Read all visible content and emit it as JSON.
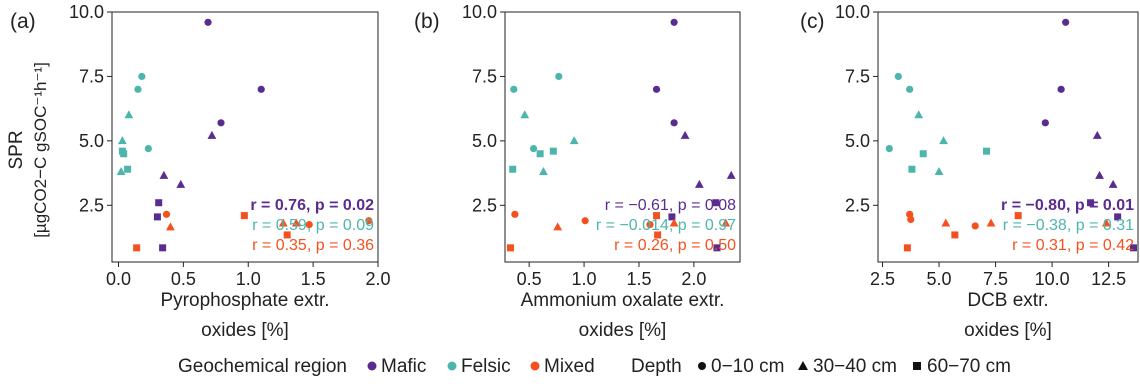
{
  "ylabel_line1": "SPR",
  "ylabel_line2": "[µgCO2−C gSOC⁻¹h⁻¹]",
  "colors": {
    "mafic": "#5b2c8f",
    "felsic": "#4db6ac",
    "mixed": "#f4511e"
  },
  "legend": {
    "region_title": "Geochemical region",
    "regions": [
      "Mafic",
      "Felsic",
      "Mixed"
    ],
    "depth_title": "Depth",
    "depths": [
      "0−10 cm",
      "30−40 cm",
      "60−70 cm"
    ]
  },
  "chart_data": [
    {
      "type": "scatter",
      "panel_label": "(a)",
      "xlabel_line1": "Pyrophosphate extr.",
      "xlabel_line2": "oxides [%]",
      "xlim": [
        -0.05,
        2.0
      ],
      "ylim": [
        0.3,
        10.0
      ],
      "xticks": [
        0.0,
        0.5,
        1.0,
        1.5,
        2.0
      ],
      "xtick_labels": [
        "0.0",
        "0.5",
        "1.0",
        "1.5",
        "2.0"
      ],
      "yticks": [
        2.5,
        5.0,
        7.5,
        10.0
      ],
      "ytick_labels": [
        "2.5",
        "5.0",
        "7.5",
        "10.0"
      ],
      "stats": [
        {
          "region": "mafic",
          "text": "r = 0.76, p = 0.02",
          "bold": true
        },
        {
          "region": "felsic",
          "text": "r = 0.59, p = 0.09",
          "bold": false
        },
        {
          "region": "mixed",
          "text": "r = 0.35, p = 0.36",
          "bold": false
        }
      ],
      "points": [
        {
          "region": "mafic",
          "depth": "0-10",
          "x": 0.69,
          "y": 9.6
        },
        {
          "region": "mafic",
          "depth": "0-10",
          "x": 1.1,
          "y": 7.0
        },
        {
          "region": "mafic",
          "depth": "0-10",
          "x": 0.79,
          "y": 5.7
        },
        {
          "region": "mafic",
          "depth": "30-40",
          "x": 0.72,
          "y": 5.2
        },
        {
          "region": "mafic",
          "depth": "30-40",
          "x": 0.35,
          "y": 3.65
        },
        {
          "region": "mafic",
          "depth": "30-40",
          "x": 0.48,
          "y": 3.3
        },
        {
          "region": "mafic",
          "depth": "60-70",
          "x": 0.31,
          "y": 2.6
        },
        {
          "region": "mafic",
          "depth": "60-70",
          "x": 0.3,
          "y": 2.05
        },
        {
          "region": "mafic",
          "depth": "60-70",
          "x": 0.34,
          "y": 0.85
        },
        {
          "region": "felsic",
          "depth": "0-10",
          "x": 0.18,
          "y": 7.5
        },
        {
          "region": "felsic",
          "depth": "0-10",
          "x": 0.15,
          "y": 7.0
        },
        {
          "region": "felsic",
          "depth": "0-10",
          "x": 0.23,
          "y": 4.7
        },
        {
          "region": "felsic",
          "depth": "30-40",
          "x": 0.08,
          "y": 6.0
        },
        {
          "region": "felsic",
          "depth": "30-40",
          "x": 0.03,
          "y": 5.0
        },
        {
          "region": "felsic",
          "depth": "30-40",
          "x": 0.02,
          "y": 3.8
        },
        {
          "region": "felsic",
          "depth": "60-70",
          "x": 0.03,
          "y": 4.6
        },
        {
          "region": "felsic",
          "depth": "60-70",
          "x": 0.04,
          "y": 4.5
        },
        {
          "region": "felsic",
          "depth": "60-70",
          "x": 0.07,
          "y": 3.9
        },
        {
          "region": "mixed",
          "depth": "0-10",
          "x": 0.37,
          "y": 2.15
        },
        {
          "region": "mixed",
          "depth": "0-10",
          "x": 1.93,
          "y": 1.9
        },
        {
          "region": "mixed",
          "depth": "30-40",
          "x": 0.4,
          "y": 1.65
        },
        {
          "region": "mixed",
          "depth": "30-40",
          "x": 1.27,
          "y": 1.8
        },
        {
          "region": "mixed",
          "depth": "30-40",
          "x": 1.37,
          "y": 1.8
        },
        {
          "region": "mixed",
          "depth": "60-70",
          "x": 0.97,
          "y": 2.1
        },
        {
          "region": "mixed",
          "depth": "60-70",
          "x": 0.14,
          "y": 0.85
        },
        {
          "region": "mixed",
          "depth": "60-70",
          "x": 1.3,
          "y": 1.35
        },
        {
          "region": "mixed",
          "depth": "0-10",
          "x": 1.47,
          "y": 1.75
        }
      ]
    },
    {
      "type": "scatter",
      "panel_label": "(b)",
      "xlabel_line1": "Ammonium oxalate extr.",
      "xlabel_line2": "oxides [%]",
      "xlim": [
        0.28,
        2.42
      ],
      "ylim": [
        0.3,
        10.0
      ],
      "xticks": [
        0.5,
        1.0,
        1.5,
        2.0
      ],
      "xtick_labels": [
        "0.5",
        "1.0",
        "1.5",
        "2.0"
      ],
      "yticks": [
        2.5,
        5.0,
        7.5,
        10.0
      ],
      "ytick_labels": [
        "2.5",
        "5.0",
        "7.5",
        "10.0"
      ],
      "stats": [
        {
          "region": "mafic",
          "text": "r = −0.61, p = 0.08",
          "bold": false
        },
        {
          "region": "felsic",
          "text": "r = −0.014, p = 0.97",
          "bold": false
        },
        {
          "region": "mixed",
          "text": "r =   0.26, p = 0.50",
          "bold": false
        }
      ],
      "points": [
        {
          "region": "mafic",
          "depth": "0-10",
          "x": 1.82,
          "y": 9.6
        },
        {
          "region": "mafic",
          "depth": "0-10",
          "x": 1.66,
          "y": 7.0
        },
        {
          "region": "mafic",
          "depth": "0-10",
          "x": 1.82,
          "y": 5.7
        },
        {
          "region": "mafic",
          "depth": "30-40",
          "x": 1.92,
          "y": 5.2
        },
        {
          "region": "mafic",
          "depth": "30-40",
          "x": 2.34,
          "y": 3.65
        },
        {
          "region": "mafic",
          "depth": "30-40",
          "x": 2.05,
          "y": 3.3
        },
        {
          "region": "mafic",
          "depth": "60-70",
          "x": 2.2,
          "y": 2.6
        },
        {
          "region": "mafic",
          "depth": "60-70",
          "x": 1.8,
          "y": 2.05
        },
        {
          "region": "mafic",
          "depth": "60-70",
          "x": 2.21,
          "y": 0.85
        },
        {
          "region": "felsic",
          "depth": "0-10",
          "x": 0.77,
          "y": 7.5
        },
        {
          "region": "felsic",
          "depth": "0-10",
          "x": 0.36,
          "y": 7.0
        },
        {
          "region": "felsic",
          "depth": "0-10",
          "x": 0.54,
          "y": 4.7
        },
        {
          "region": "felsic",
          "depth": "30-40",
          "x": 0.46,
          "y": 6.0
        },
        {
          "region": "felsic",
          "depth": "30-40",
          "x": 0.91,
          "y": 5.0
        },
        {
          "region": "felsic",
          "depth": "30-40",
          "x": 0.63,
          "y": 3.8
        },
        {
          "region": "felsic",
          "depth": "60-70",
          "x": 0.72,
          "y": 4.6
        },
        {
          "region": "felsic",
          "depth": "60-70",
          "x": 0.6,
          "y": 4.5
        },
        {
          "region": "felsic",
          "depth": "60-70",
          "x": 0.35,
          "y": 3.9
        },
        {
          "region": "mixed",
          "depth": "0-10",
          "x": 0.37,
          "y": 2.15
        },
        {
          "region": "mixed",
          "depth": "0-10",
          "x": 1.01,
          "y": 1.9
        },
        {
          "region": "mixed",
          "depth": "30-40",
          "x": 0.76,
          "y": 1.65
        },
        {
          "region": "mixed",
          "depth": "30-40",
          "x": 1.82,
          "y": 1.8
        },
        {
          "region": "mixed",
          "depth": "30-40",
          "x": 2.29,
          "y": 1.8
        },
        {
          "region": "mixed",
          "depth": "60-70",
          "x": 1.66,
          "y": 2.1
        },
        {
          "region": "mixed",
          "depth": "60-70",
          "x": 0.33,
          "y": 0.85
        },
        {
          "region": "mixed",
          "depth": "60-70",
          "x": 1.67,
          "y": 1.35
        },
        {
          "region": "mixed",
          "depth": "0-10",
          "x": 1.6,
          "y": 1.75
        }
      ]
    },
    {
      "type": "scatter",
      "panel_label": "(c)",
      "xlabel_line1": "DCB extr.",
      "xlabel_line2": "oxides [%]",
      "xlim": [
        2.3,
        13.8
      ],
      "ylim": [
        0.3,
        10.0
      ],
      "xticks": [
        2.5,
        5.0,
        7.5,
        10.0,
        12.5
      ],
      "xtick_labels": [
        "2.5",
        "5.0",
        "7.5",
        "10.0",
        "12.5"
      ],
      "yticks": [
        2.5,
        5.0,
        7.5,
        10.0
      ],
      "ytick_labels": [
        "2.5",
        "5.0",
        "7.5",
        "10.0"
      ],
      "stats": [
        {
          "region": "mafic",
          "text": "r = −0.80,   p = 0.01",
          "bold": true
        },
        {
          "region": "felsic",
          "text": "r = −0.38,    p = 0.31",
          "bold": false
        },
        {
          "region": "mixed",
          "text": "r = 0.31,     p = 0.42",
          "bold": false
        }
      ],
      "points": [
        {
          "region": "mafic",
          "depth": "0-10",
          "x": 10.6,
          "y": 9.6
        },
        {
          "region": "mafic",
          "depth": "0-10",
          "x": 10.4,
          "y": 7.0
        },
        {
          "region": "mafic",
          "depth": "0-10",
          "x": 9.7,
          "y": 5.7
        },
        {
          "region": "mafic",
          "depth": "30-40",
          "x": 12.0,
          "y": 5.2
        },
        {
          "region": "mafic",
          "depth": "30-40",
          "x": 12.1,
          "y": 3.65
        },
        {
          "region": "mafic",
          "depth": "30-40",
          "x": 12.7,
          "y": 3.3
        },
        {
          "region": "mafic",
          "depth": "60-70",
          "x": 11.7,
          "y": 2.6
        },
        {
          "region": "mafic",
          "depth": "60-70",
          "x": 12.9,
          "y": 2.05
        },
        {
          "region": "mafic",
          "depth": "60-70",
          "x": 13.6,
          "y": 0.85
        },
        {
          "region": "felsic",
          "depth": "0-10",
          "x": 3.2,
          "y": 7.5
        },
        {
          "region": "felsic",
          "depth": "0-10",
          "x": 3.7,
          "y": 7.0
        },
        {
          "region": "felsic",
          "depth": "0-10",
          "x": 2.8,
          "y": 4.7
        },
        {
          "region": "felsic",
          "depth": "30-40",
          "x": 4.1,
          "y": 6.0
        },
        {
          "region": "felsic",
          "depth": "30-40",
          "x": 5.2,
          "y": 5.0
        },
        {
          "region": "felsic",
          "depth": "30-40",
          "x": 5.0,
          "y": 3.8
        },
        {
          "region": "felsic",
          "depth": "60-70",
          "x": 7.1,
          "y": 4.6
        },
        {
          "region": "felsic",
          "depth": "60-70",
          "x": 4.3,
          "y": 4.5
        },
        {
          "region": "felsic",
          "depth": "60-70",
          "x": 3.8,
          "y": 3.9
        },
        {
          "region": "mixed",
          "depth": "0-10",
          "x": 3.7,
          "y": 2.15
        },
        {
          "region": "mixed",
          "depth": "0-10",
          "x": 3.75,
          "y": 1.95
        },
        {
          "region": "mixed",
          "depth": "30-40",
          "x": 5.3,
          "y": 1.8
        },
        {
          "region": "mixed",
          "depth": "30-40",
          "x": 7.3,
          "y": 1.8
        },
        {
          "region": "mixed",
          "depth": "30-40",
          "x": 12.4,
          "y": 1.8
        },
        {
          "region": "mixed",
          "depth": "60-70",
          "x": 8.5,
          "y": 2.1
        },
        {
          "region": "mixed",
          "depth": "60-70",
          "x": 3.6,
          "y": 0.85
        },
        {
          "region": "mixed",
          "depth": "60-70",
          "x": 5.7,
          "y": 1.35
        },
        {
          "region": "mixed",
          "depth": "0-10",
          "x": 6.6,
          "y": 1.7
        }
      ]
    }
  ]
}
